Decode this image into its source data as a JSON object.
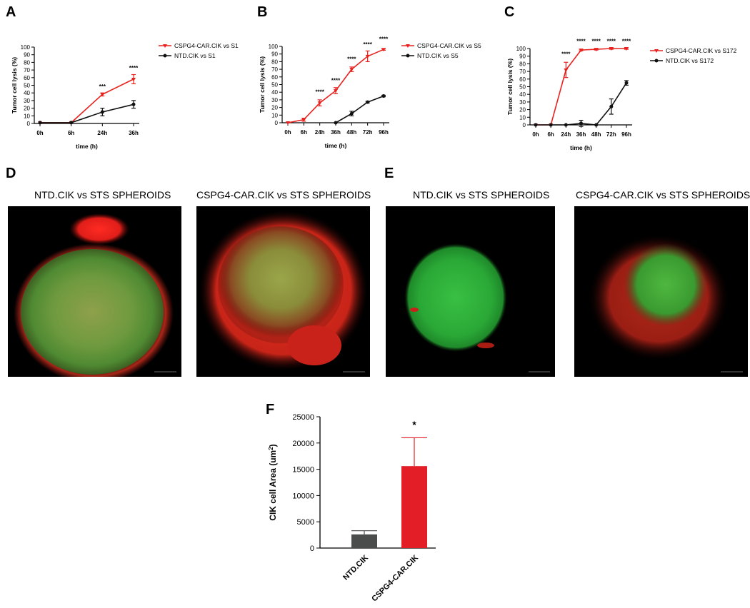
{
  "panels": {
    "A": {
      "letter": "A"
    },
    "B": {
      "letter": "B"
    },
    "C": {
      "letter": "C"
    },
    "D": {
      "letter": "D",
      "left_title": "NTD.CIK vs STS SPHEROIDS",
      "right_title": "CSPG4-CAR.CIK vs STS SPHEROIDS"
    },
    "E": {
      "letter": "E",
      "left_title": "NTD.CIK vs STS SPHEROIDS",
      "right_title": "CSPG4-CAR.CIK vs STS SPHEROIDS"
    },
    "F": {
      "letter": "F"
    }
  },
  "colors": {
    "car": "#e8221f",
    "ntd": "#111111",
    "ntd_bar": "#4a4d4c",
    "car_bar": "#e41e26"
  },
  "chart_data": [
    {
      "id": "A",
      "type": "line",
      "categories": [
        "0h",
        "6h",
        "24h",
        "36h"
      ],
      "ylim": [
        0,
        100
      ],
      "yticks": [
        0,
        10,
        20,
        30,
        40,
        50,
        60,
        70,
        80,
        90,
        100
      ],
      "ylabel": "Tumor cell lysis (%)",
      "xlabel": "time (h)",
      "legend_position": "top-right",
      "series": [
        {
          "name": "CSPG4-CAR.CIK vs S1",
          "color": "#e8221f",
          "marker": "triangle",
          "values": [
            1,
            1,
            38,
            58
          ],
          "errors": [
            0,
            0,
            2,
            6
          ]
        },
        {
          "name": "NTD.CIK vs S1",
          "color": "#111111",
          "marker": "circle",
          "values": [
            1,
            1,
            15,
            25
          ],
          "errors": [
            0,
            0,
            5,
            5
          ]
        }
      ],
      "annotations": [
        {
          "category": "24h",
          "text": "***",
          "y": 46
        },
        {
          "category": "36h",
          "text": "****",
          "y": 70
        }
      ]
    },
    {
      "id": "B",
      "type": "line",
      "categories": [
        "0h",
        "6h",
        "24h",
        "36h",
        "48h",
        "72h",
        "96h"
      ],
      "ylim": [
        0,
        100
      ],
      "yticks": [
        0,
        10,
        20,
        30,
        40,
        50,
        60,
        70,
        80,
        90,
        100
      ],
      "ylabel": "Tumor cell lysis (%)",
      "xlabel": "time (h)",
      "legend_position": "top-right",
      "series": [
        {
          "name": "CSPG4-CAR.CIK vs S5",
          "color": "#e8221f",
          "marker": "triangle",
          "values": [
            0,
            4,
            26,
            42,
            70,
            87,
            96
          ],
          "errors": [
            0,
            2,
            4,
            4,
            3,
            7,
            1
          ]
        },
        {
          "name": "NTD.CIK vs S5",
          "color": "#111111",
          "marker": "circle",
          "values": [
            null,
            null,
            null,
            0,
            12,
            27,
            35
          ],
          "errors": [
            0,
            0,
            0,
            0,
            3,
            1,
            1
          ]
        }
      ],
      "annotations": [
        {
          "category": "24h",
          "text": "****",
          "y": 38
        },
        {
          "category": "36h",
          "text": "****",
          "y": 53
        },
        {
          "category": "48h",
          "text": "****",
          "y": 81
        },
        {
          "category": "72h",
          "text": "****",
          "y": 100
        },
        {
          "category": "96h",
          "text": "****",
          "y": 107
        }
      ]
    },
    {
      "id": "C",
      "type": "line",
      "categories": [
        "0h",
        "6h",
        "24h",
        "36h",
        "48h",
        "72h",
        "96h"
      ],
      "ylim": [
        0,
        100
      ],
      "yticks": [
        0,
        10,
        20,
        30,
        40,
        50,
        60,
        70,
        80,
        90,
        100
      ],
      "ylabel": "Tumor cell lysis (%)",
      "xlabel": "time (h)",
      "legend_position": "top-right",
      "series": [
        {
          "name": "CSPG4-CAR.CIK vs S172",
          "color": "#e8221f",
          "marker": "triangle",
          "values": [
            0,
            0,
            72,
            98,
            99,
            100,
            100
          ],
          "errors": [
            0,
            0,
            10,
            1,
            1,
            1,
            1
          ]
        },
        {
          "name": "NTD.CIK vs S172",
          "color": "#111111",
          "marker": "circle",
          "values": [
            0,
            0,
            0,
            2,
            0,
            24,
            55
          ],
          "errors": [
            0,
            0,
            0,
            4,
            0,
            10,
            3
          ]
        }
      ],
      "annotations": [
        {
          "category": "24h",
          "text": "****",
          "y": 90
        },
        {
          "category": "36h",
          "text": "****",
          "y": 107
        },
        {
          "category": "48h",
          "text": "****",
          "y": 107
        },
        {
          "category": "72h",
          "text": "****",
          "y": 107
        },
        {
          "category": "96h",
          "text": "****",
          "y": 107
        }
      ]
    },
    {
      "id": "F",
      "type": "bar",
      "categories": [
        "NTD.CIK",
        "CSPG4-CAR.CIK"
      ],
      "values": [
        2600,
        15600
      ],
      "errors": [
        700,
        5400
      ],
      "colors": [
        "#4a4d4c",
        "#e41e26"
      ],
      "ylim": [
        0,
        25000
      ],
      "yticks": [
        0,
        5000,
        10000,
        15000,
        20000,
        25000
      ],
      "ylabel_main": "CIK cell Area (um",
      "ylabel_sup": "2",
      "ylabel_end": ")",
      "annotations": [
        {
          "category": "CSPG4-CAR.CIK",
          "text": "*",
          "y": 24200
        }
      ]
    }
  ]
}
